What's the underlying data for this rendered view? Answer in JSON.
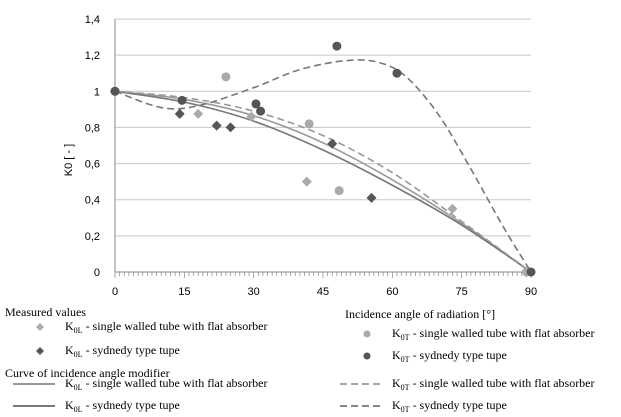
{
  "chart_data": {
    "type": "scatter",
    "xlabel": "Incidence angle of radiation [°]",
    "ylabel": "K0 [ - ]",
    "xlim": [
      0,
      90
    ],
    "ylim": [
      0,
      1.4
    ],
    "x_ticks": [
      "0",
      "15",
      "30",
      "45",
      "60",
      "75",
      "90"
    ],
    "y_ticks": [
      "0",
      "0,2",
      "0,4",
      "0,6",
      "0,8",
      "1",
      "1,2",
      "1,4"
    ],
    "grid": "horizontal",
    "measured_values_title": "Measured values",
    "curve_title": "Curve of incidence angle modifier",
    "series": [
      {
        "name": "K0L - single walled tube with flat absorber",
        "kind": "measured",
        "marker": "diamond",
        "color": "#aaaaaa",
        "points": [
          [
            0,
            1.0
          ],
          [
            18,
            0.875
          ],
          [
            29.5,
            0.86
          ],
          [
            41.5,
            0.5
          ],
          [
            73,
            0.35
          ],
          [
            89,
            0.0
          ]
        ]
      },
      {
        "name": "K0L - sydnedy type tupe",
        "kind": "measured",
        "marker": "diamond",
        "color": "#555555",
        "points": [
          [
            0,
            1.0
          ],
          [
            14,
            0.875
          ],
          [
            22,
            0.81
          ],
          [
            25,
            0.8
          ],
          [
            47,
            0.71
          ],
          [
            55.5,
            0.41
          ],
          [
            89,
            0.0
          ]
        ]
      },
      {
        "name": "K0T - single walled tube with flat absorber",
        "kind": "measured",
        "marker": "circle",
        "color": "#aaaaaa",
        "points": [
          [
            0,
            1.0
          ],
          [
            24,
            1.08
          ],
          [
            42,
            0.82
          ],
          [
            48.5,
            0.45
          ],
          [
            89,
            0.0
          ]
        ]
      },
      {
        "name": "K0T - sydnedy type tupe",
        "kind": "measured",
        "marker": "circle",
        "color": "#555555",
        "points": [
          [
            0,
            1.0
          ],
          [
            14.5,
            0.95
          ],
          [
            30.5,
            0.93
          ],
          [
            31.5,
            0.89
          ],
          [
            48,
            1.25
          ],
          [
            61,
            1.1
          ],
          [
            90,
            0.0
          ]
        ]
      },
      {
        "name": "K0L - single walled tube with flat absorber",
        "kind": "curve",
        "dash": "solid",
        "color": "#999999",
        "points": [
          [
            0,
            1.0
          ],
          [
            15,
            0.955
          ],
          [
            30,
            0.865
          ],
          [
            45,
            0.715
          ],
          [
            60,
            0.51
          ],
          [
            75,
            0.27
          ],
          [
            90,
            0.0
          ]
        ]
      },
      {
        "name": "K0L - sydnedy type tupe",
        "kind": "curve",
        "dash": "solid",
        "color": "#777777",
        "points": [
          [
            0,
            1.0
          ],
          [
            15,
            0.94
          ],
          [
            30,
            0.835
          ],
          [
            45,
            0.675
          ],
          [
            60,
            0.48
          ],
          [
            75,
            0.26
          ],
          [
            90,
            0.0
          ]
        ]
      },
      {
        "name": "K0T - single walled tube with flat absorber",
        "kind": "curve",
        "dash": "dashed",
        "color": "#999999",
        "points": [
          [
            0,
            1.0
          ],
          [
            15,
            0.965
          ],
          [
            30,
            0.89
          ],
          [
            45,
            0.755
          ],
          [
            60,
            0.55
          ],
          [
            75,
            0.28
          ],
          [
            90,
            0.0
          ]
        ]
      },
      {
        "name": "K0T - sydnedy type tupe",
        "kind": "curve",
        "dash": "dashed",
        "color": "#777777",
        "points": [
          [
            0,
            1.0
          ],
          [
            10,
            0.91
          ],
          [
            18,
            0.92
          ],
          [
            30,
            1.02
          ],
          [
            40,
            1.12
          ],
          [
            50,
            1.17
          ],
          [
            57,
            1.16
          ],
          [
            63,
            1.08
          ],
          [
            70,
            0.87
          ],
          [
            77,
            0.57
          ],
          [
            84,
            0.25
          ],
          [
            90,
            0.0
          ]
        ]
      }
    ]
  },
  "legend": {
    "measured_title": "Measured values",
    "curve_title": "Curve of incidence angle modifier",
    "col_left": [
      {
        "k": "K",
        "sub": "0L",
        "text": " - single walled tube with flat absorber"
      },
      {
        "k": "K",
        "sub": "0L",
        "text": " - sydnedy type tupe"
      },
      {
        "k": "K",
        "sub": "0L",
        "text": " - single walled tube with flat absorber"
      },
      {
        "k": "K",
        "sub": "0L",
        "text": " - sydnedy type tupe"
      }
    ],
    "col_right": [
      {
        "k": "K",
        "sub": "0T",
        "text": " - single walled tube with flat absorber"
      },
      {
        "k": "K",
        "sub": "0T",
        "text": " - sydnedy type tupe"
      },
      {
        "k": "K",
        "sub": "0T",
        "text": " - single walled tube with flat absorber"
      },
      {
        "k": "K",
        "sub": "0T",
        "text": " - sydnedy type tupe"
      }
    ],
    "x_axis_title": "Incidence angle of radiation [°]"
  }
}
